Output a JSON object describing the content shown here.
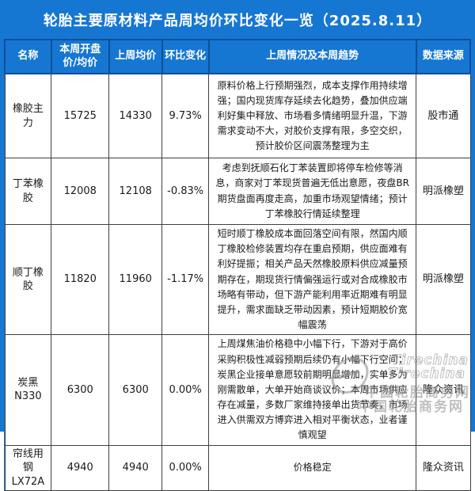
{
  "title": "轮胎主要原材料产品周均价环比变化一览（2025.8.11）",
  "table": {
    "headers": {
      "name": "名称",
      "current": "本周开盘价/均价",
      "last_week": "上周均价",
      "change": "环比变化",
      "summary": "上周情况及本周趋势",
      "source": "数据来源"
    },
    "rows": [
      {
        "name": "橡胶主力",
        "current": "15725",
        "last_week": "14330",
        "change": "9.73%",
        "summary": "原料价格上行预期强烈，成本支撑作用持续增强；国内现货库存延续去化趋势，叠加供应端利好集中释放、市场看多情绪明显升温，下游需求变动不大，对胶价支撑有限，多空交织，预计胶价区间震荡整理为主",
        "source": "股市通"
      },
      {
        "name": "丁苯橡胶",
        "current": "12008",
        "last_week": "12108",
        "change": "-0.83%",
        "summary": "考虑到抚顺石化丁苯装置即将停车检修等消息，商家对丁苯现货普遍无低出意愿，夜盘BR期货盘面再度走高，加重市场观望情绪；预计丁苯橡胶行情延续整理",
        "source": "明派橡塑"
      },
      {
        "name": "顺丁橡胶",
        "current": "11820",
        "last_week": "11960",
        "change": "-1.17%",
        "summary": "短时顺丁橡胶成本面回落空间有限，然国内顺丁橡胶检修装置均存在重启预期，供应面难有利好提振；相关产品天然橡胶原料供应减量预期存在，期现货行情偏强运行或对合成橡胶市场略有带动，但下游产能利用率近期难有明显提升，需求面缺乏带动因素，预计短期胶价宽幅震荡",
        "source": "明派橡塑"
      },
      {
        "name": "炭黑N330",
        "current": "6300",
        "last_week": "6300",
        "change": "0.00%",
        "summary": "上周煤焦油价格稳中小幅下行，下游对于高价采购积极性减弱预期后续仍有小幅下行空间；炭黑企业接单意愿较前期明显增加，实单多为刚需散单，大单开始商谈议价；本周市场供应存在减量，多数厂家维持接单出货节奏，市场进入供需双方博弈进入相对平衡状态，业者谨慎观望",
        "source": "隆众资讯"
      },
      {
        "name": "帘线用钢LX72A",
        "current": "4940",
        "last_week": "4940",
        "change": "0.00%",
        "summary": "价格稳定",
        "source": "隆众资讯"
      }
    ]
  },
  "watermark": {
    "brand_line1": "Tirechina",
    "brand_line2": "Tirechina",
    "site_line1": "中国轮胎商务网",
    "site_line2": "中国轮胎商务网"
  },
  "colors": {
    "primary_blue": "#1677d3",
    "header_divider": "#0b4f97",
    "body_border": "#3f3f3f",
    "text": "#1a1a1a"
  }
}
